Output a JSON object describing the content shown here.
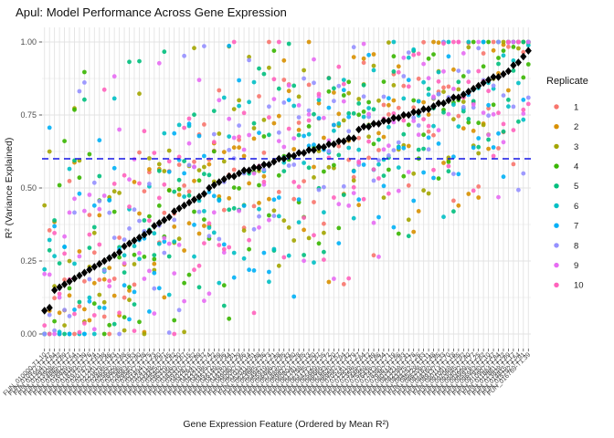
{
  "title": "Apul: Model Performance Across Gene Expression",
  "axes": {
    "x_label": "Gene Expression Feature (Ordered by Mean R²)",
    "y_label": "R² (Variance Explained)",
    "y_tick_labels": [
      "1.00",
      "0.75",
      "0.50",
      "0.25",
      "0.00"
    ],
    "y_tick_values": [
      1.0,
      0.75,
      0.5,
      0.25,
      0.0
    ],
    "y_minor_values": [
      0.875,
      0.625,
      0.375,
      0.125
    ]
  },
  "legend": {
    "title": "Replicate",
    "entries": [
      {
        "label": "1",
        "color": "#F8766D"
      },
      {
        "label": "2",
        "color": "#D89000"
      },
      {
        "label": "3",
        "color": "#A3A500"
      },
      {
        "label": "4",
        "color": "#39B600"
      },
      {
        "label": "5",
        "color": "#00BF7D"
      },
      {
        "label": "6",
        "color": "#00BFC4"
      },
      {
        "label": "7",
        "color": "#00B0F6"
      },
      {
        "label": "8",
        "color": "#9590FF"
      },
      {
        "label": "9",
        "color": "#E76BF3"
      },
      {
        "label": "10",
        "color": "#FF62BC"
      }
    ]
  },
  "chart_data": {
    "type": "scatter",
    "title": "Apul: Model Performance Across Gene Expression",
    "xlabel": "Gene Expression Feature (Ordered by Mean R²)",
    "ylabel": "R² (Variance Explained)",
    "ylim": [
      0,
      1
    ],
    "grid": true,
    "grid_color": "#E3E3E3",
    "legend_position": "right",
    "n_features": 98,
    "x_tick_labels_legible": false,
    "x_tick_label_note": "98 rotated (45°) gene-feature ID labels, overlapping and illegible at this resolution; rendered with placeholder IDs",
    "x_tick_label_placeholder_prefix": "FUN_0",
    "threshold_line": {
      "y": 0.6,
      "style": "dashed",
      "color": "#1414E6"
    },
    "mean_series": {
      "name": "Mean R² per feature (black diamonds, ascending)",
      "shape": "diamond",
      "color": "#000000",
      "values": [
        0.08,
        0.09,
        0.15,
        0.16,
        0.17,
        0.18,
        0.19,
        0.2,
        0.21,
        0.22,
        0.23,
        0.24,
        0.25,
        0.26,
        0.27,
        0.28,
        0.3,
        0.31,
        0.32,
        0.33,
        0.34,
        0.35,
        0.37,
        0.38,
        0.39,
        0.4,
        0.42,
        0.43,
        0.44,
        0.45,
        0.46,
        0.47,
        0.48,
        0.5,
        0.51,
        0.52,
        0.53,
        0.54,
        0.54,
        0.55,
        0.56,
        0.56,
        0.57,
        0.57,
        0.58,
        0.58,
        0.59,
        0.6,
        0.6,
        0.61,
        0.61,
        0.62,
        0.62,
        0.63,
        0.63,
        0.64,
        0.64,
        0.65,
        0.65,
        0.66,
        0.66,
        0.67,
        0.67,
        0.7,
        0.71,
        0.71,
        0.72,
        0.72,
        0.73,
        0.73,
        0.74,
        0.74,
        0.75,
        0.75,
        0.76,
        0.76,
        0.77,
        0.77,
        0.78,
        0.79,
        0.79,
        0.8,
        0.81,
        0.81,
        0.82,
        0.83,
        0.84,
        0.85,
        0.86,
        0.87,
        0.88,
        0.88,
        0.89,
        0.9,
        0.92,
        0.93,
        0.95,
        0.97
      ]
    },
    "replicate_scatter": {
      "points_per_feature": 10,
      "distribution": "per-replicate R² = feature mean + N(0, 0.17); 25% uniform outliers in [mean-0.5, mean+0.75]; clamped to [0,1]",
      "point_radius_px": 2.4,
      "seed": 11
    }
  }
}
